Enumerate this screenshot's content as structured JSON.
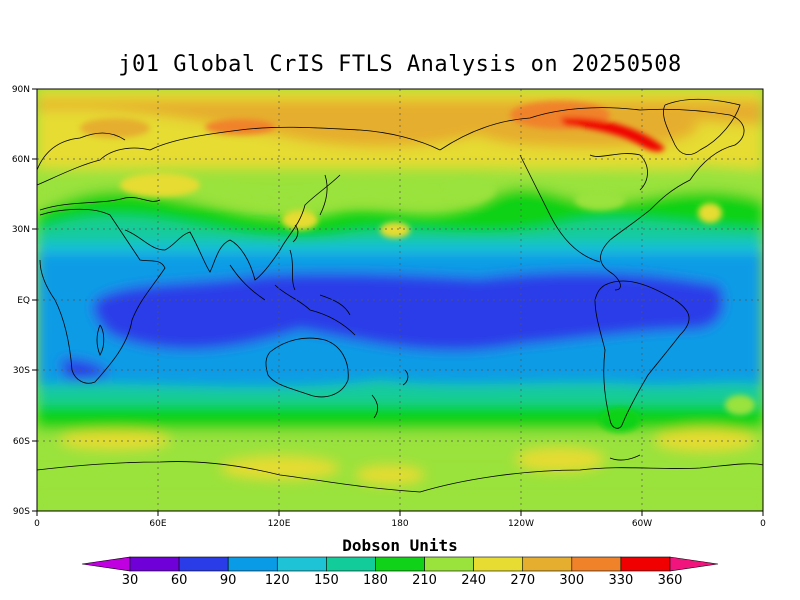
{
  "title": "j01 Global CrIS FTLS Analysis on 20250508",
  "map": {
    "projection": "equirectangular",
    "lon_ticks": [
      "0",
      "60E",
      "120E",
      "180",
      "120W",
      "60W",
      "0"
    ],
    "lat_ticks": [
      "90N",
      "60N",
      "30N",
      "EQ",
      "30S",
      "60S",
      "90S"
    ],
    "grid": "dotted"
  },
  "colorbar": {
    "title": "Dobson Units",
    "labels": [
      "30",
      "60",
      "90",
      "120",
      "150",
      "180",
      "210",
      "240",
      "270",
      "300",
      "330",
      "360"
    ],
    "colors": [
      "#c000e0",
      "#7000d8",
      "#2a3ce8",
      "#0a9be6",
      "#1ec4d6",
      "#12cc9a",
      "#10d218",
      "#9ae23c",
      "#e6dc32",
      "#e6ae2e",
      "#f0822a",
      "#f00000",
      "#f0147c"
    ]
  },
  "fields": {
    "colors": {
      "band_210": "#10d218",
      "band_180": "#12cc9a",
      "band_150": "#1ec4d6",
      "band_120": "#0a9be6",
      "band_90": "#2a3ce8",
      "band_240": "#9ae23c",
      "band_270": "#e6dc32",
      "band_300": "#e6ae2e",
      "band_330": "#f0822a",
      "band_360": "#f00000"
    }
  }
}
